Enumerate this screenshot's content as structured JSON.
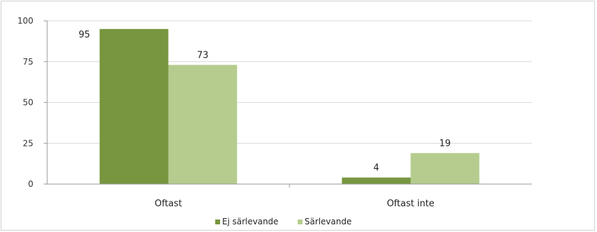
{
  "chart_data": {
    "type": "bar",
    "categories": [
      "Oftast",
      "Oftast inte"
    ],
    "series": [
      {
        "name": "Ej särlevande",
        "values": [
          95,
          4
        ],
        "color": "#77963f"
      },
      {
        "name": "Särlevande",
        "values": [
          73,
          19
        ],
        "color": "#b5cc8e"
      }
    ],
    "ylim": [
      0,
      100
    ],
    "yticks": [
      0,
      25,
      50,
      75,
      100
    ],
    "grid": true,
    "legend_position": "bottom",
    "title": "",
    "xlabel": "",
    "ylabel": ""
  }
}
